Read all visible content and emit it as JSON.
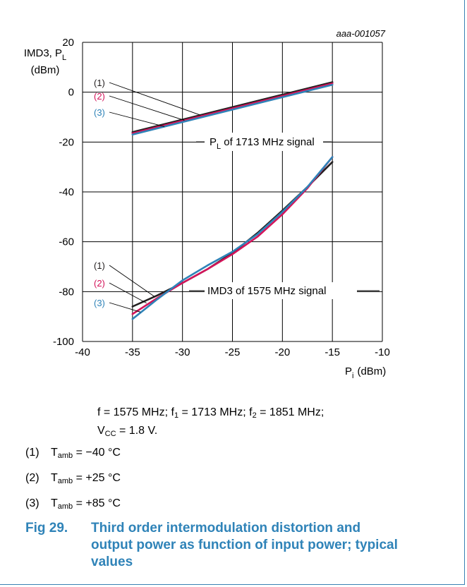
{
  "chart_data": {
    "type": "line",
    "code": "aaa-001057",
    "ylabel_main": "IMD3, P",
    "ylabel_sub": "L",
    "ylabel_unit": "(dBm)",
    "xlabel_main": "P",
    "xlabel_sub": "i",
    "xlabel_unit": "(dBm)",
    "xlim": [
      -40,
      -10
    ],
    "ylim": [
      -100,
      20
    ],
    "x_ticks": [
      -40,
      -35,
      -30,
      -25,
      -20,
      -15,
      -10
    ],
    "y_ticks": [
      20,
      0,
      -20,
      -40,
      -60,
      -80,
      -100
    ],
    "grid": true,
    "groups": [
      {
        "label": "P",
        "label_sub": "L",
        "label_rest": " of 1713 MHz signal",
        "series": [
          {
            "name": "(1)",
            "color": "#231f20",
            "x": [
              -35,
              -15
            ],
            "y": [
              -16,
              4
            ]
          },
          {
            "name": "(2)",
            "color": "#d4145a",
            "x": [
              -35,
              -15
            ],
            "y": [
              -16.5,
              3.5
            ]
          },
          {
            "name": "(3)",
            "color": "#2f83b8",
            "x": [
              -35,
              -15
            ],
            "y": [
              -17,
              3
            ]
          }
        ]
      },
      {
        "label": "IMD3 of 1575 MHz signal",
        "series": [
          {
            "name": "(1)",
            "color": "#231f20",
            "x": [
              -35,
              -32.5,
              -30,
              -27.5,
              -25,
              -22.5,
              -20,
              -17.5,
              -15
            ],
            "y": [
              -86,
              -81.5,
              -76.5,
              -71,
              -64.5,
              -56.5,
              -47.5,
              -38,
              -28
            ]
          },
          {
            "name": "(2)",
            "color": "#d4145a",
            "x": [
              -35,
              -32.5,
              -30,
              -27.5,
              -25,
              -22.5,
              -20,
              -17.5,
              -15
            ],
            "y": [
              -89,
              -82.5,
              -76.5,
              -71,
              -65,
              -58,
              -49,
              -38.5,
              -26
            ]
          },
          {
            "name": "(3)",
            "color": "#2f83b8",
            "x": [
              -35,
              -32.5,
              -30,
              -27.5,
              -25,
              -22.5,
              -20,
              -17.5,
              -15
            ],
            "y": [
              -91,
              -83,
              -75.5,
              -69.5,
              -64,
              -57,
              -48,
              -38,
              -26
            ]
          }
        ]
      }
    ]
  },
  "conditions": {
    "line1": {
      "a": "f = 1575 MHz; f",
      "a_sub": "1",
      "b": " = 1713 MHz; f",
      "b_sub": "2",
      "c": " = 1851 MHz;"
    },
    "line2": {
      "a": "V",
      "a_sub": "CC",
      "b": " = 1.8 V."
    }
  },
  "legend": [
    {
      "num": "(1)",
      "t": "T",
      "sub": "amb",
      "value": " = −40 °C"
    },
    {
      "num": "(2)",
      "t": "T",
      "sub": "amb",
      "value": " = +25 °C"
    },
    {
      "num": "(3)",
      "t": "T",
      "sub": "amb",
      "value": " = +85 °C"
    }
  ],
  "caption": {
    "fig": "Fig 29.",
    "text": "Third order intermodulation distortion and output power as function of input power; typical values"
  }
}
